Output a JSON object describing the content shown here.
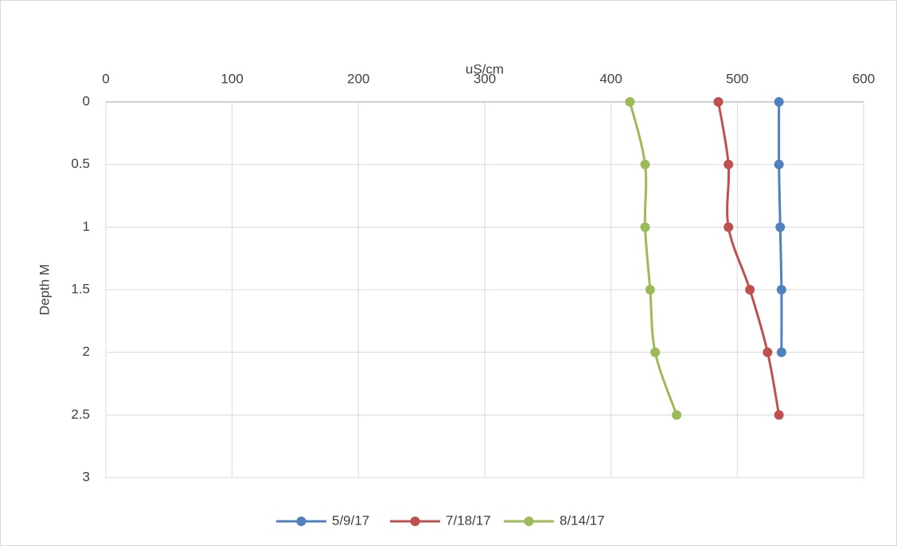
{
  "chart_data": {
    "type": "line",
    "x_label": "uS/cm",
    "y_label": "Depth M",
    "y": [
      0,
      0.5,
      1,
      1.5,
      2,
      2.5
    ],
    "series": [
      {
        "name": "5/9/17",
        "color": "#4f81bd",
        "values": [
          533,
          533,
          534,
          535,
          535,
          null
        ]
      },
      {
        "name": "7/18/17",
        "color": "#c0504d",
        "values": [
          485,
          493,
          493,
          510,
          524,
          533
        ]
      },
      {
        "name": "8/14/17",
        "color": "#9bbb59",
        "values": [
          415,
          427,
          427,
          431,
          435,
          452
        ]
      }
    ],
    "xlim": [
      0,
      600
    ],
    "xticks": [
      0,
      100,
      200,
      300,
      400,
      500,
      600
    ],
    "ylim": [
      0,
      3
    ],
    "yticks": [
      0,
      0.5,
      1,
      1.5,
      2,
      2.5,
      3
    ],
    "y_inverted": true,
    "x_axis_position": "top",
    "grid": true,
    "legend": "bottom"
  }
}
